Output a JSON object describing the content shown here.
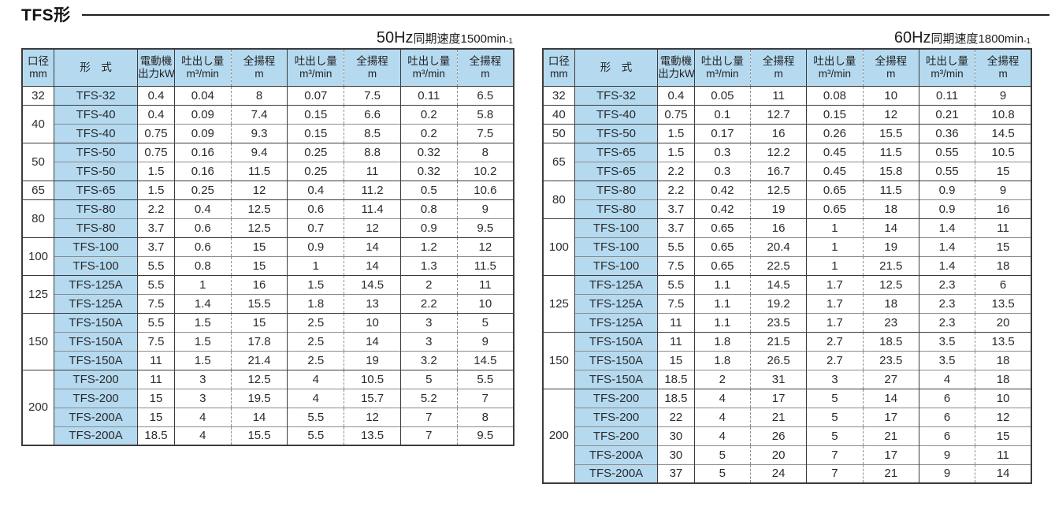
{
  "page": {
    "title": "TFS形"
  },
  "columns": [
    {
      "l1": "口径",
      "l2": "mm"
    },
    {
      "l1": "形　式",
      "l2": ""
    },
    {
      "l1": "電動機",
      "l2": "出力kW"
    },
    {
      "l1": "吐出し量",
      "l2": "m³/min"
    },
    {
      "l1": "全揚程",
      "l2": "m"
    },
    {
      "l1": "吐出し量",
      "l2": "m³/min"
    },
    {
      "l1": "全揚程",
      "l2": "m"
    },
    {
      "l1": "吐出し量",
      "l2": "m³/min"
    },
    {
      "l1": "全揚程",
      "l2": "m"
    }
  ],
  "colors": {
    "header_blue": "#b5daf0",
    "border_dark": "#3c3c3c",
    "border_gray": "#8c8c8c"
  },
  "tables": [
    {
      "id": "50hz",
      "caption_big": "50Hz",
      "caption_small": "同期速度1500min",
      "caption_sup": "-1",
      "groups": [
        {
          "diameter": "32",
          "rows": [
            [
              "TFS-32",
              "0.4",
              "0.04",
              "8",
              "0.07",
              "7.5",
              "0.11",
              "6.5"
            ]
          ]
        },
        {
          "diameter": "40",
          "rows": [
            [
              "TFS-40",
              "0.4",
              "0.09",
              "7.4",
              "0.15",
              "6.6",
              "0.2",
              "5.8"
            ],
            [
              "TFS-40",
              "0.75",
              "0.09",
              "9.3",
              "0.15",
              "8.5",
              "0.2",
              "7.5"
            ]
          ]
        },
        {
          "diameter": "50",
          "rows": [
            [
              "TFS-50",
              "0.75",
              "0.16",
              "9.4",
              "0.25",
              "8.8",
              "0.32",
              "8"
            ],
            [
              "TFS-50",
              "1.5",
              "0.16",
              "11.5",
              "0.25",
              "11",
              "0.32",
              "10.2"
            ]
          ]
        },
        {
          "diameter": "65",
          "rows": [
            [
              "TFS-65",
              "1.5",
              "0.25",
              "12",
              "0.4",
              "11.2",
              "0.5",
              "10.6"
            ]
          ]
        },
        {
          "diameter": "80",
          "rows": [
            [
              "TFS-80",
              "2.2",
              "0.4",
              "12.5",
              "0.6",
              "11.4",
              "0.8",
              "9"
            ],
            [
              "TFS-80",
              "3.7",
              "0.6",
              "12.5",
              "0.7",
              "12",
              "0.9",
              "9.5"
            ]
          ]
        },
        {
          "diameter": "100",
          "rows": [
            [
              "TFS-100",
              "3.7",
              "0.6",
              "15",
              "0.9",
              "14",
              "1.2",
              "12"
            ],
            [
              "TFS-100",
              "5.5",
              "0.8",
              "15",
              "1",
              "14",
              "1.3",
              "11.5"
            ]
          ]
        },
        {
          "diameter": "125",
          "rows": [
            [
              "TFS-125A",
              "5.5",
              "1",
              "16",
              "1.5",
              "14.5",
              "2",
              "11"
            ],
            [
              "TFS-125A",
              "7.5",
              "1.4",
              "15.5",
              "1.8",
              "13",
              "2.2",
              "10"
            ]
          ]
        },
        {
          "diameter": "150",
          "rows": [
            [
              "TFS-150A",
              "5.5",
              "1.5",
              "15",
              "2.5",
              "10",
              "3",
              "5"
            ],
            [
              "TFS-150A",
              "7.5",
              "1.5",
              "17.8",
              "2.5",
              "14",
              "3",
              "9"
            ],
            [
              "TFS-150A",
              "11",
              "1.5",
              "21.4",
              "2.5",
              "19",
              "3.2",
              "14.5"
            ]
          ]
        },
        {
          "diameter": "200",
          "rows": [
            [
              "TFS-200",
              "11",
              "3",
              "12.5",
              "4",
              "10.5",
              "5",
              "5.5"
            ],
            [
              "TFS-200",
              "15",
              "3",
              "19.5",
              "4",
              "15.7",
              "5.2",
              "7"
            ],
            [
              "TFS-200A",
              "15",
              "4",
              "14",
              "5.5",
              "12",
              "7",
              "8"
            ],
            [
              "TFS-200A",
              "18.5",
              "4",
              "15.5",
              "5.5",
              "13.5",
              "7",
              "9.5"
            ]
          ]
        }
      ]
    },
    {
      "id": "60hz",
      "caption_big": "60Hz",
      "caption_small": "同期速度1800min",
      "caption_sup": "-1",
      "groups": [
        {
          "diameter": "32",
          "rows": [
            [
              "TFS-32",
              "0.4",
              "0.05",
              "11",
              "0.08",
              "10",
              "0.11",
              "9"
            ]
          ]
        },
        {
          "diameter": "40",
          "rows": [
            [
              "TFS-40",
              "0.75",
              "0.1",
              "12.7",
              "0.15",
              "12",
              "0.21",
              "10.8"
            ]
          ]
        },
        {
          "diameter": "50",
          "rows": [
            [
              "TFS-50",
              "1.5",
              "0.17",
              "16",
              "0.26",
              "15.5",
              "0.36",
              "14.5"
            ]
          ]
        },
        {
          "diameter": "65",
          "rows": [
            [
              "TFS-65",
              "1.5",
              "0.3",
              "12.2",
              "0.45",
              "11.5",
              "0.55",
              "10.5"
            ],
            [
              "TFS-65",
              "2.2",
              "0.3",
              "16.7",
              "0.45",
              "15.8",
              "0.55",
              "15"
            ]
          ]
        },
        {
          "diameter": "80",
          "rows": [
            [
              "TFS-80",
              "2.2",
              "0.42",
              "12.5",
              "0.65",
              "11.5",
              "0.9",
              "9"
            ],
            [
              "TFS-80",
              "3.7",
              "0.42",
              "19",
              "0.65",
              "18",
              "0.9",
              "16"
            ]
          ]
        },
        {
          "diameter": "100",
          "rows": [
            [
              "TFS-100",
              "3.7",
              "0.65",
              "16",
              "1",
              "14",
              "1.4",
              "11"
            ],
            [
              "TFS-100",
              "5.5",
              "0.65",
              "20.4",
              "1",
              "19",
              "1.4",
              "15"
            ],
            [
              "TFS-100",
              "7.5",
              "0.65",
              "22.5",
              "1",
              "21.5",
              "1.4",
              "18"
            ]
          ]
        },
        {
          "diameter": "125",
          "rows": [
            [
              "TFS-125A",
              "5.5",
              "1.1",
              "14.5",
              "1.7",
              "12.5",
              "2.3",
              "6"
            ],
            [
              "TFS-125A",
              "7.5",
              "1.1",
              "19.2",
              "1.7",
              "18",
              "2.3",
              "13.5"
            ],
            [
              "TFS-125A",
              "11",
              "1.1",
              "23.5",
              "1.7",
              "23",
              "2.3",
              "20"
            ]
          ]
        },
        {
          "diameter": "150",
          "rows": [
            [
              "TFS-150A",
              "11",
              "1.8",
              "21.5",
              "2.7",
              "18.5",
              "3.5",
              "13.5"
            ],
            [
              "TFS-150A",
              "15",
              "1.8",
              "26.5",
              "2.7",
              "23.5",
              "3.5",
              "18"
            ],
            [
              "TFS-150A",
              "18.5",
              "2",
              "31",
              "3",
              "27",
              "4",
              "18"
            ]
          ]
        },
        {
          "diameter": "200",
          "rows": [
            [
              "TFS-200",
              "18.5",
              "4",
              "17",
              "5",
              "14",
              "6",
              "10"
            ],
            [
              "TFS-200",
              "22",
              "4",
              "21",
              "5",
              "17",
              "6",
              "12"
            ],
            [
              "TFS-200",
              "30",
              "4",
              "26",
              "5",
              "21",
              "6",
              "15"
            ],
            [
              "TFS-200A",
              "30",
              "5",
              "20",
              "7",
              "17",
              "9",
              "11"
            ],
            [
              "TFS-200A",
              "37",
              "5",
              "24",
              "7",
              "21",
              "9",
              "14"
            ]
          ]
        }
      ]
    }
  ]
}
